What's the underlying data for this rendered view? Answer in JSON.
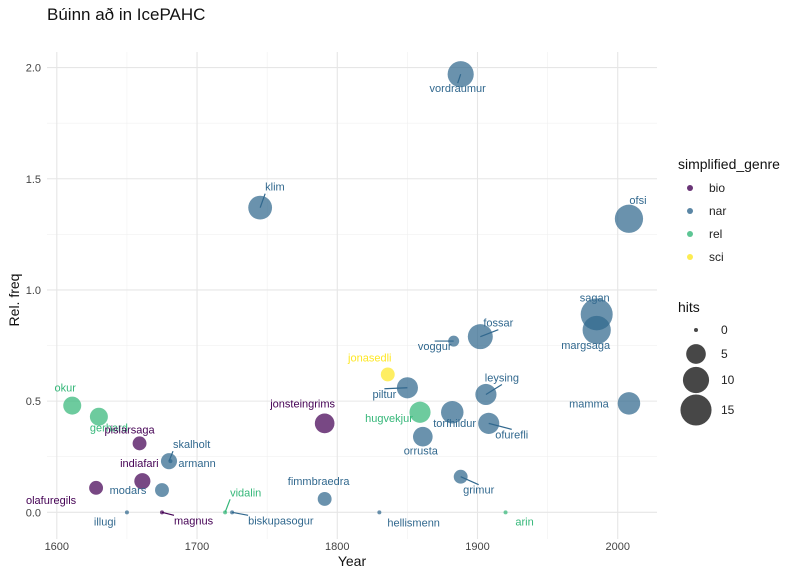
{
  "chart_data": {
    "type": "scatter",
    "title": "Búinn að in IcePAHC",
    "xlabel": "Year",
    "ylabel": "Rel. freq",
    "xlim": [
      1593,
      2028
    ],
    "ylim": [
      -0.12,
      2.07
    ],
    "xticks": [
      1600,
      1700,
      1800,
      1900,
      2000
    ],
    "yticks": [
      0.0,
      0.5,
      1.0,
      1.5,
      2.0
    ],
    "ytick_labels": [
      "0.0",
      "0.5",
      "1.0",
      "1.5",
      "2.0"
    ],
    "grid": true,
    "colors": {
      "bio": "#440154",
      "nar": "#31688e",
      "rel": "#35b779",
      "sci": "#fde725"
    },
    "legend_color": {
      "title": "simplified_genre",
      "items": [
        "bio",
        "nar",
        "rel",
        "sci"
      ]
    },
    "legend_size": {
      "title": "hits",
      "items": [
        0,
        5,
        10,
        15
      ]
    },
    "points": [
      {
        "label": "okur",
        "genre": "rel",
        "x": 1611,
        "y": 0.48,
        "hits": 4
      },
      {
        "label": "gerhard",
        "genre": "rel",
        "x": 1630,
        "y": 0.43,
        "hits": 4
      },
      {
        "label": "pislarsaga",
        "genre": "bio",
        "x": 1659,
        "y": 0.31,
        "hits": 2
      },
      {
        "label": "indiafari",
        "genre": "bio",
        "x": 1661,
        "y": 0.14,
        "hits": 3
      },
      {
        "label": "olafuregils",
        "genre": "bio",
        "x": 1628,
        "y": 0.11,
        "hits": 2
      },
      {
        "label": "illugi",
        "genre": "nar",
        "x": 1650,
        "y": 0.0,
        "hits": 0
      },
      {
        "label": "skalholt",
        "genre": "nar",
        "x": 1680,
        "y": 0.23,
        "hits": 3
      },
      {
        "label": "armann",
        "genre": "nar",
        "x": 1681,
        "y": 0.23,
        "hits": 0
      },
      {
        "label": "modars",
        "genre": "nar",
        "x": 1675,
        "y": 0.1,
        "hits": 2
      },
      {
        "label": "magnus",
        "genre": "bio",
        "x": 1675,
        "y": 0.0,
        "hits": 0
      },
      {
        "label": "vidalin",
        "genre": "rel",
        "x": 1720,
        "y": 0.0,
        "hits": 0
      },
      {
        "label": "biskupasogur",
        "genre": "nar",
        "x": 1725,
        "y": 0.0,
        "hits": 0
      },
      {
        "label": "klim",
        "genre": "nar",
        "x": 1745,
        "y": 1.37,
        "hits": 8
      },
      {
        "label": "jonsteingrims",
        "genre": "bio",
        "x": 1791,
        "y": 0.4,
        "hits": 5
      },
      {
        "label": "fimmbraedra",
        "genre": "nar",
        "x": 1791,
        "y": 0.06,
        "hits": 2
      },
      {
        "label": "hellismenn",
        "genre": "nar",
        "x": 1830,
        "y": 0.0,
        "hits": 0
      },
      {
        "label": "jonasedli",
        "genre": "sci",
        "x": 1836,
        "y": 0.62,
        "hits": 2
      },
      {
        "label": "piltur",
        "genre": "nar",
        "x": 1850,
        "y": 0.56,
        "hits": 6
      },
      {
        "label": "hugvekjur",
        "genre": "rel",
        "x": 1859,
        "y": 0.45,
        "hits": 6
      },
      {
        "label": "orrusta",
        "genre": "nar",
        "x": 1861,
        "y": 0.34,
        "hits": 5
      },
      {
        "label": "torfhildur",
        "genre": "nar",
        "x": 1882,
        "y": 0.45,
        "hits": 7
      },
      {
        "label": "vordraumur",
        "genre": "nar",
        "x": 1888,
        "y": 1.97,
        "hits": 10
      },
      {
        "label": "voggur",
        "genre": "nar",
        "x": 1883,
        "y": 0.77,
        "hits": 1
      },
      {
        "label": "grimur",
        "genre": "nar",
        "x": 1888,
        "y": 0.16,
        "hits": 2
      },
      {
        "label": "fossar",
        "genre": "nar",
        "x": 1902,
        "y": 0.79,
        "hits": 9
      },
      {
        "label": "leysing",
        "genre": "nar",
        "x": 1906,
        "y": 0.53,
        "hits": 6
      },
      {
        "label": "ofurefli",
        "genre": "nar",
        "x": 1908,
        "y": 0.4,
        "hits": 6
      },
      {
        "label": "arin",
        "genre": "rel",
        "x": 1920,
        "y": 0.0,
        "hits": 0
      },
      {
        "label": "sagan",
        "genre": "nar",
        "x": 1985,
        "y": 0.89,
        "hits": 16
      },
      {
        "label": "margsaga",
        "genre": "nar",
        "x": 1985,
        "y": 0.82,
        "hits": 12
      },
      {
        "label": "ofsi",
        "genre": "nar",
        "x": 2008,
        "y": 1.32,
        "hits": 12
      },
      {
        "label": "mamma",
        "genre": "nar",
        "x": 2008,
        "y": 0.49,
        "hits": 7
      }
    ]
  }
}
